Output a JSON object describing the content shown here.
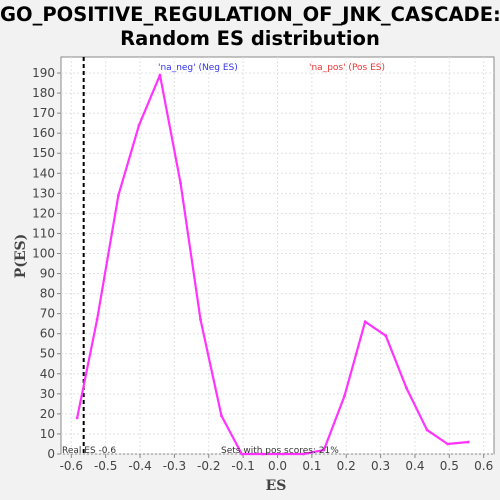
{
  "chart_data": {
    "type": "line",
    "title": "GO_POSITIVE_REGULATION_OF_JNK_CASCADE:",
    "subtitle": "Random ES distribution",
    "xlabel": "ES",
    "ylabel": "P(ES)",
    "xlim": [
      -0.63,
      0.63
    ],
    "ylim": [
      0,
      198
    ],
    "xticks": [
      "-0.6",
      "-0.5",
      "-0.4",
      "-0.3",
      "-0.2",
      "-0.1",
      "0.0",
      "0.1",
      "0.2",
      "0.3",
      "0.4",
      "0.5",
      "0.6"
    ],
    "yticks": [
      "0",
      "10",
      "20",
      "30",
      "40",
      "50",
      "60",
      "70",
      "80",
      "90",
      "100",
      "110",
      "120",
      "130",
      "140",
      "150",
      "160",
      "170",
      "180",
      "190"
    ],
    "grid": true,
    "series": [
      {
        "color": "#ff33ff",
        "x": [
          -0.583,
          -0.525,
          -0.463,
          -0.403,
          -0.342,
          -0.282,
          -0.224,
          -0.163,
          -0.104,
          -0.043,
          0.016,
          0.076,
          0.135,
          0.195,
          0.255,
          0.315,
          0.375,
          0.435,
          0.495,
          0.555
        ],
        "y": [
          18,
          67,
          129,
          164,
          189,
          135,
          67,
          19,
          0,
          0,
          0,
          0,
          2,
          29,
          66,
          59,
          33,
          12,
          5,
          6
        ]
      }
    ],
    "real_es": {
      "x": -0.564,
      "label": "Real ES -0.6"
    },
    "legend": [
      {
        "label": "'na_neg' (Neg ES)",
        "color": "#3333ee"
      },
      {
        "label": "'na_pos' (Pos ES)",
        "color": "#ee3333"
      }
    ],
    "annotation": "Sets with pos scores: 21%"
  }
}
